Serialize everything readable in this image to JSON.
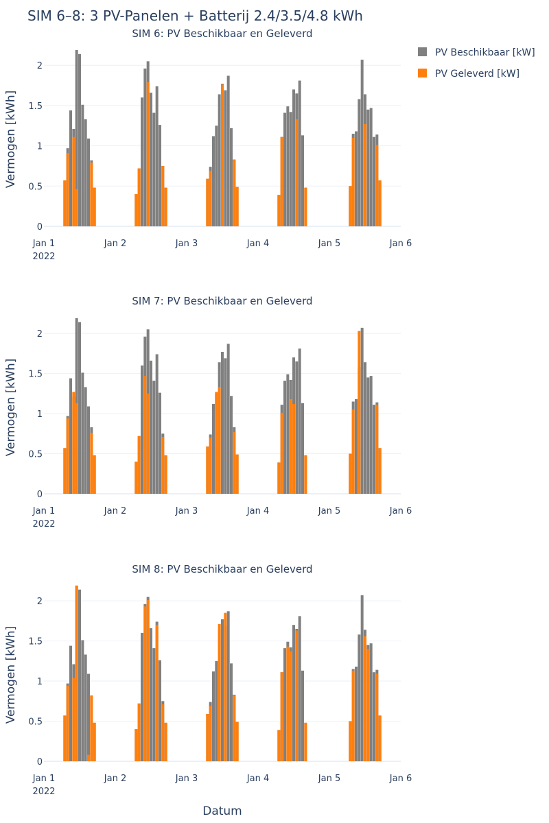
{
  "figure_title": "SIM 6–8: 3 PV-Panelen + Batterij 2.4/3.5/4.8 kWh",
  "x_axis_title": "Datum",
  "legend_position": "top-right",
  "legend": [
    {
      "label": "PV Beschikbaar [kW]",
      "color": "#808080"
    },
    {
      "label": "PV Geleverd [kW]",
      "color": "#ff7f0e"
    }
  ],
  "colors": {
    "beschikbaar": "#808080",
    "geleverd": "#ff7f0e",
    "grid": "#ebf0f8",
    "text": "#2a3f5f"
  },
  "chart_data": [
    {
      "type": "bar",
      "title": "SIM 6: PV Beschikbaar en Geleverd",
      "ylabel": "Vermogen [kWh]",
      "xlabel": "",
      "ylim": [
        0,
        2.3
      ],
      "yticks": [
        0,
        0.5,
        1,
        1.5,
        2
      ],
      "ytick_labels": [
        "0",
        "0.5",
        "1",
        "1.5",
        "2"
      ],
      "xlim": [
        1.0,
        6.0
      ],
      "xticks": [
        1,
        2,
        3,
        4,
        5,
        6
      ],
      "xtick_labels": [
        "Jan 1",
        "Jan 2",
        "Jan 3",
        "Jan 4",
        "Jan 5",
        "Jan 6"
      ],
      "xtick_sublabel": "2022",
      "grid": true,
      "barmode": "overlay",
      "series": [
        {
          "name": "PV Beschikbaar [kW]",
          "color": "#808080",
          "groups": [
            {
              "day": 1,
              "values": [
                0.57,
                0.97,
                1.44,
                1.21,
                2.19,
                2.14,
                1.51,
                1.33,
                1.09,
                0.82,
                0.48
              ]
            },
            {
              "day": 2,
              "values": [
                0.4,
                0.72,
                1.6,
                1.96,
                2.05,
                1.66,
                1.41,
                1.74,
                1.26,
                0.75,
                0.48
              ]
            },
            {
              "day": 3,
              "values": [
                0.59,
                0.74,
                1.12,
                1.25,
                1.64,
                1.77,
                1.69,
                1.87,
                1.22,
                0.83,
                0.49
              ]
            },
            {
              "day": 4,
              "values": [
                0.39,
                1.11,
                1.41,
                1.49,
                1.42,
                1.7,
                1.65,
                1.81,
                1.13,
                0.48
              ]
            },
            {
              "day": 5,
              "values": [
                0.5,
                1.15,
                1.18,
                1.58,
                2.07,
                1.64,
                1.45,
                1.47,
                1.11,
                1.14,
                0.57
              ]
            }
          ]
        },
        {
          "name": "PV Geleverd [kW]",
          "color": "#ff7f0e",
          "groups": [
            {
              "day": 1,
              "values": [
                0.57,
                0.91,
                0.0,
                1.11,
                0.46,
                0.0,
                0.0,
                0.0,
                0.0,
                0.79,
                0.48
              ]
            },
            {
              "day": 2,
              "values": [
                0.4,
                0.72,
                0.0,
                0.0,
                1.79,
                0.0,
                0.0,
                0.0,
                0.0,
                0.75,
                0.48
              ]
            },
            {
              "day": 3,
              "values": [
                0.59,
                0.69,
                0.0,
                0.0,
                0.0,
                1.76,
                0.0,
                0.0,
                0.0,
                0.83,
                0.49
              ]
            },
            {
              "day": 4,
              "values": [
                0.39,
                1.11,
                0.0,
                0.0,
                0.0,
                0.0,
                1.33,
                0.0,
                0.0,
                0.48
              ]
            },
            {
              "day": 5,
              "values": [
                0.5,
                1.1,
                0.0,
                0.0,
                0.0,
                1.27,
                0.0,
                0.0,
                0.0,
                1.01,
                0.57
              ]
            }
          ]
        }
      ]
    },
    {
      "type": "bar",
      "title": "SIM 7: PV Beschikbaar en Geleverd",
      "ylabel": "Vermogen [kWh]",
      "xlabel": "",
      "ylim": [
        0,
        2.3
      ],
      "yticks": [
        0,
        0.5,
        1,
        1.5,
        2
      ],
      "ytick_labels": [
        "0",
        "0.5",
        "1",
        "1.5",
        "2"
      ],
      "xlim": [
        1.0,
        6.0
      ],
      "xticks": [
        1,
        2,
        3,
        4,
        5,
        6
      ],
      "xtick_labels": [
        "Jan 1",
        "Jan 2",
        "Jan 3",
        "Jan 4",
        "Jan 5",
        "Jan 6"
      ],
      "xtick_sublabel": "2022",
      "grid": true,
      "barmode": "overlay",
      "series": [
        {
          "name": "PV Beschikbaar [kW]",
          "color": "#808080",
          "groups": [
            {
              "day": 1,
              "values": [
                0.57,
                0.97,
                1.44,
                1.21,
                2.19,
                2.14,
                1.51,
                1.33,
                1.09,
                0.83,
                0.48
              ]
            },
            {
              "day": 2,
              "values": [
                0.4,
                0.72,
                1.6,
                1.96,
                2.05,
                1.66,
                1.41,
                1.74,
                1.26,
                0.75,
                0.48
              ]
            },
            {
              "day": 3,
              "values": [
                0.59,
                0.74,
                1.12,
                1.25,
                1.64,
                1.77,
                1.69,
                1.87,
                1.22,
                0.83,
                0.49
              ]
            },
            {
              "day": 4,
              "values": [
                0.39,
                1.11,
                1.41,
                1.49,
                1.42,
                1.7,
                1.65,
                1.81,
                1.13,
                0.48
              ]
            },
            {
              "day": 5,
              "values": [
                0.5,
                1.15,
                1.18,
                1.58,
                2.07,
                1.64,
                1.45,
                1.47,
                1.11,
                1.14,
                0.57
              ]
            }
          ]
        },
        {
          "name": "PV Geleverd [kW]",
          "color": "#ff7f0e",
          "groups": [
            {
              "day": 1,
              "values": [
                0.57,
                0.94,
                0.0,
                1.27,
                1.13,
                0.0,
                0.0,
                0.0,
                0.0,
                0.76,
                0.48
              ]
            },
            {
              "day": 2,
              "values": [
                0.4,
                0.72,
                0.0,
                1.47,
                1.25,
                0.0,
                0.0,
                0.0,
                0.0,
                0.71,
                0.48
              ]
            },
            {
              "day": 3,
              "values": [
                0.59,
                0.7,
                0.0,
                1.27,
                1.33,
                0.0,
                0.0,
                0.0,
                0.0,
                0.77,
                0.49
              ]
            },
            {
              "day": 4,
              "values": [
                0.39,
                1.01,
                0.0,
                0.0,
                1.18,
                1.12,
                0.0,
                0.0,
                0.0,
                0.48
              ]
            },
            {
              "day": 5,
              "values": [
                0.5,
                1.05,
                0.0,
                2.03,
                0.0,
                0.0,
                0.0,
                0.0,
                0.0,
                1.11,
                0.57
              ]
            }
          ]
        }
      ]
    },
    {
      "type": "bar",
      "title": "SIM 8: PV Beschikbaar en Geleverd",
      "ylabel": "Vermogen [kWh]",
      "xlabel": "Datum",
      "ylim": [
        0,
        2.3
      ],
      "yticks": [
        0,
        0.5,
        1,
        1.5,
        2
      ],
      "ytick_labels": [
        "0",
        "0.5",
        "1",
        "1.5",
        "2"
      ],
      "xlim": [
        1.0,
        6.0
      ],
      "xticks": [
        1,
        2,
        3,
        4,
        5,
        6
      ],
      "xtick_labels": [
        "Jan 1",
        "Jan 2",
        "Jan 3",
        "Jan 4",
        "Jan 5",
        "Jan 6"
      ],
      "xtick_sublabel": "2022",
      "grid": true,
      "barmode": "overlay",
      "series": [
        {
          "name": "PV Beschikbaar [kW]",
          "color": "#808080",
          "groups": [
            {
              "day": 1,
              "values": [
                0.57,
                0.97,
                1.44,
                1.21,
                2.19,
                2.14,
                1.51,
                1.33,
                1.09,
                0.82,
                0.48
              ]
            },
            {
              "day": 2,
              "values": [
                0.4,
                0.72,
                1.6,
                1.96,
                2.05,
                1.66,
                1.41,
                1.74,
                1.26,
                0.75,
                0.48
              ]
            },
            {
              "day": 3,
              "values": [
                0.59,
                0.74,
                1.12,
                1.25,
                1.64,
                1.77,
                1.69,
                1.87,
                1.22,
                0.83,
                0.49
              ]
            },
            {
              "day": 4,
              "values": [
                0.39,
                1.11,
                1.41,
                1.49,
                1.42,
                1.7,
                1.65,
                1.81,
                1.13,
                0.48
              ]
            },
            {
              "day": 5,
              "values": [
                0.5,
                1.15,
                1.18,
                1.58,
                2.07,
                1.64,
                1.45,
                1.47,
                1.11,
                1.14,
                0.57
              ]
            }
          ]
        },
        {
          "name": "PV Geleverd [kW]",
          "color": "#ff7f0e",
          "groups": [
            {
              "day": 1,
              "values": [
                0.57,
                0.94,
                0.0,
                1.04,
                2.19,
                0.0,
                0.0,
                0.0,
                0.08,
                0.82,
                0.48
              ]
            },
            {
              "day": 2,
              "values": [
                0.4,
                0.72,
                0.0,
                1.93,
                2.01,
                0.0,
                0.0,
                1.7,
                0.0,
                0.71,
                0.48
              ]
            },
            {
              "day": 3,
              "values": [
                0.59,
                0.69,
                0.0,
                0.0,
                1.71,
                0.0,
                1.85,
                0.0,
                0.0,
                0.82,
                0.49
              ]
            },
            {
              "day": 4,
              "values": [
                0.39,
                1.11,
                0.0,
                1.43,
                1.37,
                0.0,
                1.63,
                0.0,
                0.0,
                0.48
              ]
            },
            {
              "day": 5,
              "values": [
                0.5,
                1.13,
                0.0,
                0.0,
                0.0,
                1.56,
                1.4,
                0.0,
                0.0,
                1.09,
                0.57
              ]
            }
          ]
        }
      ]
    }
  ]
}
